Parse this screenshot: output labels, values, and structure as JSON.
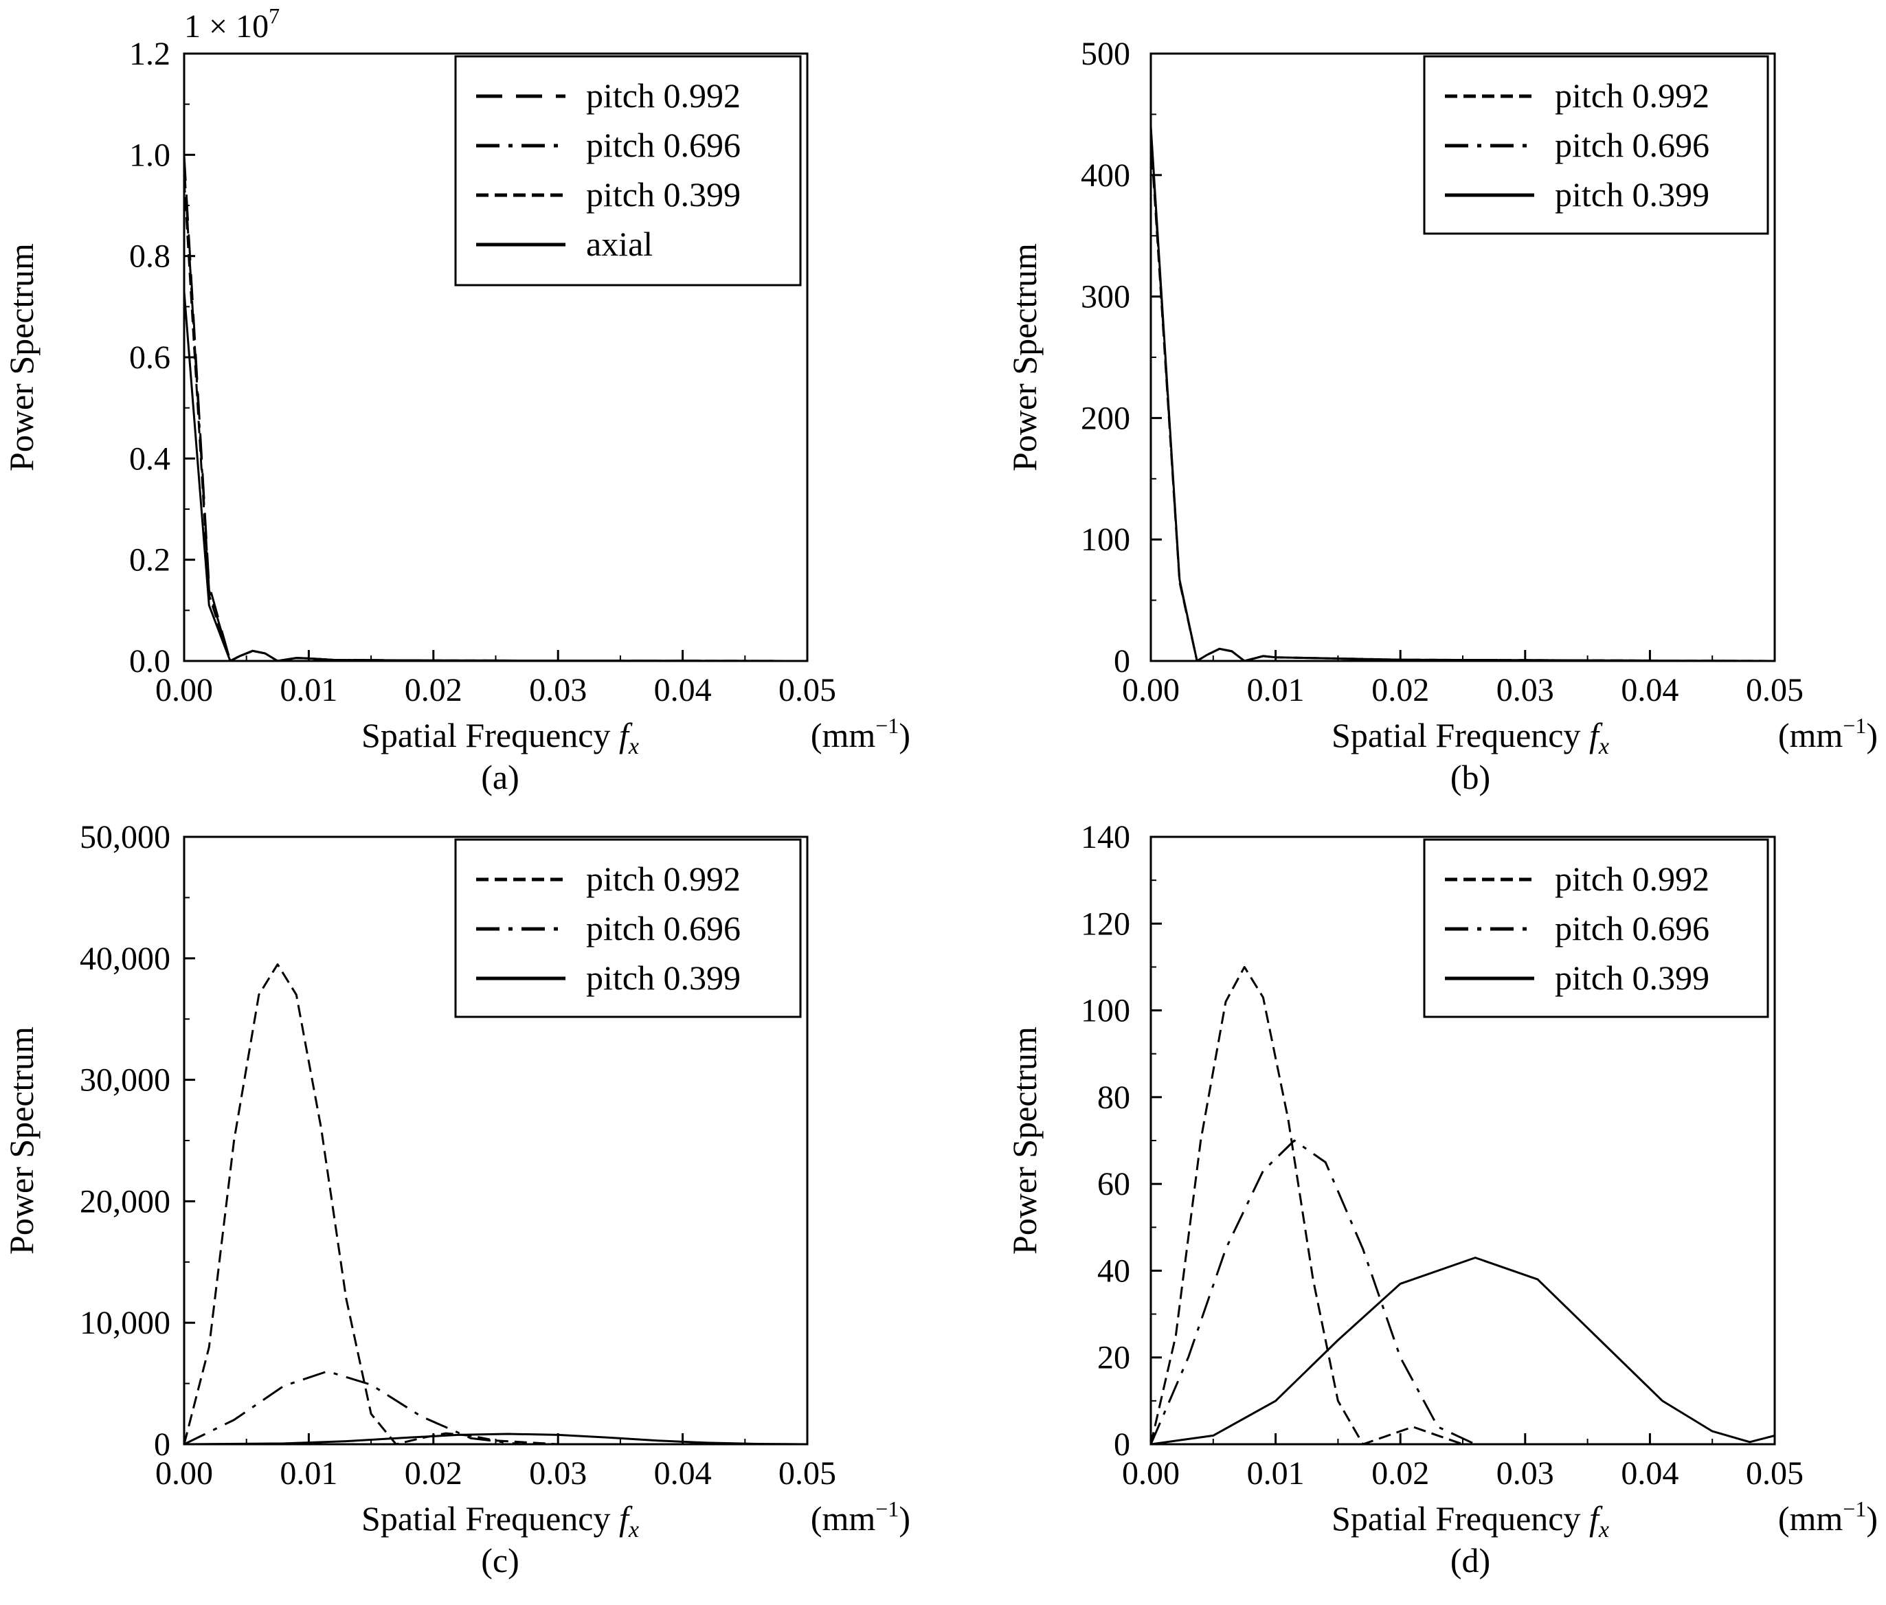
{
  "colors": {
    "line": "#000000",
    "background": "#ffffff"
  },
  "chart_data": [
    {
      "type": "line",
      "panel_label": "(a)",
      "xlabel": "Spatial Frequency",
      "xlabel_var": "f",
      "xlabel_sub": "x",
      "xunit": "(mm",
      "xunit_sup": "−1",
      "xunit_close": ")",
      "ylabel": "Power Spectrum",
      "multiplier_text": "1 × 10",
      "multiplier_exp": "7",
      "xlim": [
        0,
        0.05
      ],
      "ylim": [
        0,
        1.2
      ],
      "xticks": [
        0,
        0.01,
        0.02,
        0.03,
        0.04,
        0.05
      ],
      "xtick_labels": [
        "0.00",
        "0.01",
        "0.02",
        "0.03",
        "0.04",
        "0.05"
      ],
      "yticks": [
        0,
        0.2,
        0.4,
        0.6,
        0.8,
        1.0,
        1.2
      ],
      "ytick_labels": [
        "0.0",
        "0.2",
        "0.4",
        "0.6",
        "0.8",
        "1.0",
        "1.2"
      ],
      "legend": "top-right",
      "series": [
        {
          "name": "pitch 0.992",
          "style": "longdash",
          "x": [
            0,
            0.002,
            0.0037,
            0.0045,
            0.0055,
            0.0065,
            0.0075,
            0.009,
            0.01,
            0.012,
            0.02,
            0.05
          ],
          "y": [
            1.0,
            0.15,
            0.0,
            0.01,
            0.02,
            0.015,
            0.0,
            0.006,
            0.005,
            0.002,
            0.001,
            0.0
          ]
        },
        {
          "name": "pitch 0.696",
          "style": "dashdot",
          "x": [
            0,
            0.002,
            0.0037,
            0.0045,
            0.0055,
            0.0065,
            0.0075,
            0.009,
            0.01,
            0.012,
            0.02,
            0.05
          ],
          "y": [
            0.98,
            0.14,
            0.0,
            0.01,
            0.02,
            0.015,
            0.0,
            0.006,
            0.005,
            0.002,
            0.001,
            0.0
          ]
        },
        {
          "name": "pitch 0.399",
          "style": "shortdash",
          "x": [
            0,
            0.002,
            0.0037,
            0.0045,
            0.0055,
            0.0065,
            0.0075,
            0.009,
            0.01,
            0.012,
            0.02,
            0.05
          ],
          "y": [
            0.95,
            0.13,
            0.0,
            0.01,
            0.02,
            0.015,
            0.0,
            0.006,
            0.005,
            0.002,
            0.001,
            0.0
          ]
        },
        {
          "name": "axial",
          "style": "solid",
          "x": [
            0,
            0.002,
            0.0037,
            0.0045,
            0.0055,
            0.0065,
            0.0075,
            0.009,
            0.01,
            0.012,
            0.02,
            0.05
          ],
          "y": [
            0.73,
            0.11,
            0.0,
            0.01,
            0.02,
            0.015,
            0.0,
            0.006,
            0.005,
            0.002,
            0.001,
            0.0
          ]
        }
      ]
    },
    {
      "type": "line",
      "panel_label": "(b)",
      "xlabel": "Spatial Frequency",
      "xlabel_var": "f",
      "xlabel_sub": "x",
      "xunit": "(mm",
      "xunit_sup": "−1",
      "xunit_close": ")",
      "ylabel": "Power Spectrum",
      "xlim": [
        0,
        0.05
      ],
      "ylim": [
        0,
        500
      ],
      "xticks": [
        0,
        0.01,
        0.02,
        0.03,
        0.04,
        0.05
      ],
      "xtick_labels": [
        "0.00",
        "0.01",
        "0.02",
        "0.03",
        "0.04",
        "0.05"
      ],
      "yticks": [
        0,
        100,
        200,
        300,
        400,
        500
      ],
      "ytick_labels": [
        "0",
        "100",
        "200",
        "300",
        "400",
        "500"
      ],
      "legend": "top-right",
      "series": [
        {
          "name": "pitch 0.992",
          "style": "shortdash",
          "x": [
            0,
            0.0023,
            0.0037,
            0.0045,
            0.0055,
            0.0065,
            0.0075,
            0.009,
            0.01,
            0.02,
            0.05
          ],
          "y": [
            430,
            65,
            0,
            5,
            10,
            8,
            0,
            4,
            3,
            1,
            0
          ]
        },
        {
          "name": "pitch 0.696",
          "style": "dashdot",
          "x": [
            0,
            0.0023,
            0.0037,
            0.0045,
            0.0055,
            0.0065,
            0.0075,
            0.009,
            0.01,
            0.02,
            0.05
          ],
          "y": [
            435,
            66,
            0,
            5,
            10,
            8,
            0,
            4,
            3,
            1,
            0
          ]
        },
        {
          "name": "pitch 0.399",
          "style": "solid",
          "x": [
            0,
            0.0023,
            0.0037,
            0.0045,
            0.0055,
            0.0065,
            0.0075,
            0.009,
            0.01,
            0.02,
            0.05
          ],
          "y": [
            440,
            67,
            0,
            5,
            10,
            8,
            0,
            4,
            3,
            1,
            0
          ]
        }
      ]
    },
    {
      "type": "line",
      "panel_label": "(c)",
      "xlabel": "Spatial Frequency",
      "xlabel_var": "f",
      "xlabel_sub": "x",
      "xunit": "(mm",
      "xunit_sup": "−1",
      "xunit_close": ")",
      "ylabel": "Power Spectrum",
      "xlim": [
        0,
        0.05
      ],
      "ylim": [
        0,
        50000
      ],
      "xticks": [
        0,
        0.01,
        0.02,
        0.03,
        0.04,
        0.05
      ],
      "xtick_labels": [
        "0.00",
        "0.01",
        "0.02",
        "0.03",
        "0.04",
        "0.05"
      ],
      "yticks": [
        0,
        10000,
        20000,
        30000,
        40000,
        50000
      ],
      "ytick_labels": [
        "0",
        "10,000",
        "20,000",
        "30,000",
        "40,000",
        "50,000"
      ],
      "legend": "top-right",
      "series": [
        {
          "name": "pitch 0.992",
          "style": "shortdash",
          "x": [
            0,
            0.002,
            0.004,
            0.006,
            0.0075,
            0.009,
            0.011,
            0.013,
            0.015,
            0.017,
            0.019,
            0.021,
            0.023,
            0.025,
            0.03,
            0.05
          ],
          "y": [
            0,
            8000,
            25000,
            37000,
            39500,
            37000,
            26000,
            12000,
            2500,
            0,
            500,
            900,
            700,
            300,
            0,
            0
          ]
        },
        {
          "name": "pitch 0.696",
          "style": "dashdot",
          "x": [
            0,
            0.004,
            0.008,
            0.0115,
            0.015,
            0.019,
            0.023,
            0.027,
            0.05
          ],
          "y": [
            0,
            2000,
            4800,
            6000,
            4900,
            2300,
            500,
            0,
            0
          ]
        },
        {
          "name": "pitch 0.399",
          "style": "solid",
          "x": [
            0,
            0.008,
            0.013,
            0.018,
            0.022,
            0.026,
            0.03,
            0.034,
            0.038,
            0.042,
            0.046,
            0.05
          ],
          "y": [
            0,
            60,
            250,
            550,
            770,
            850,
            770,
            550,
            300,
            120,
            30,
            0
          ]
        }
      ]
    },
    {
      "type": "line",
      "panel_label": "(d)",
      "xlabel": "Spatial Frequency",
      "xlabel_var": "f",
      "xlabel_sub": "x",
      "xunit": "(mm",
      "xunit_sup": "−1",
      "xunit_close": ")",
      "ylabel": "Power Spectrum",
      "xlim": [
        0,
        0.05
      ],
      "ylim": [
        0,
        140
      ],
      "xticks": [
        0,
        0.01,
        0.02,
        0.03,
        0.04,
        0.05
      ],
      "xtick_labels": [
        "0.00",
        "0.01",
        "0.02",
        "0.03",
        "0.04",
        "0.05"
      ],
      "yticks": [
        0,
        20,
        40,
        60,
        80,
        100,
        120,
        140
      ],
      "ytick_labels": [
        "0",
        "20",
        "40",
        "60",
        "80",
        "100",
        "120",
        "140"
      ],
      "legend": "top-right",
      "series": [
        {
          "name": "pitch 0.992",
          "style": "shortdash",
          "x": [
            0,
            0.002,
            0.004,
            0.006,
            0.0075,
            0.009,
            0.011,
            0.013,
            0.015,
            0.017,
            0.019,
            0.021,
            0.023,
            0.025,
            0.05
          ],
          "y": [
            0,
            25,
            70,
            102,
            110,
            103,
            75,
            38,
            10,
            0,
            2,
            4,
            2,
            0,
            0
          ]
        },
        {
          "name": "pitch 0.696",
          "style": "dashdot",
          "x": [
            0,
            0.003,
            0.006,
            0.009,
            0.0115,
            0.014,
            0.017,
            0.02,
            0.023,
            0.026,
            0.05
          ],
          "y": [
            0,
            20,
            45,
            63,
            70,
            65,
            45,
            20,
            4,
            0,
            0
          ]
        },
        {
          "name": "pitch 0.399",
          "style": "solid",
          "x": [
            0,
            0.005,
            0.01,
            0.015,
            0.02,
            0.026,
            0.031,
            0.036,
            0.041,
            0.045,
            0.048,
            0.05
          ],
          "y": [
            0,
            2,
            10,
            24,
            37,
            43,
            38,
            24,
            10,
            3,
            0.5,
            2
          ]
        }
      ]
    }
  ]
}
